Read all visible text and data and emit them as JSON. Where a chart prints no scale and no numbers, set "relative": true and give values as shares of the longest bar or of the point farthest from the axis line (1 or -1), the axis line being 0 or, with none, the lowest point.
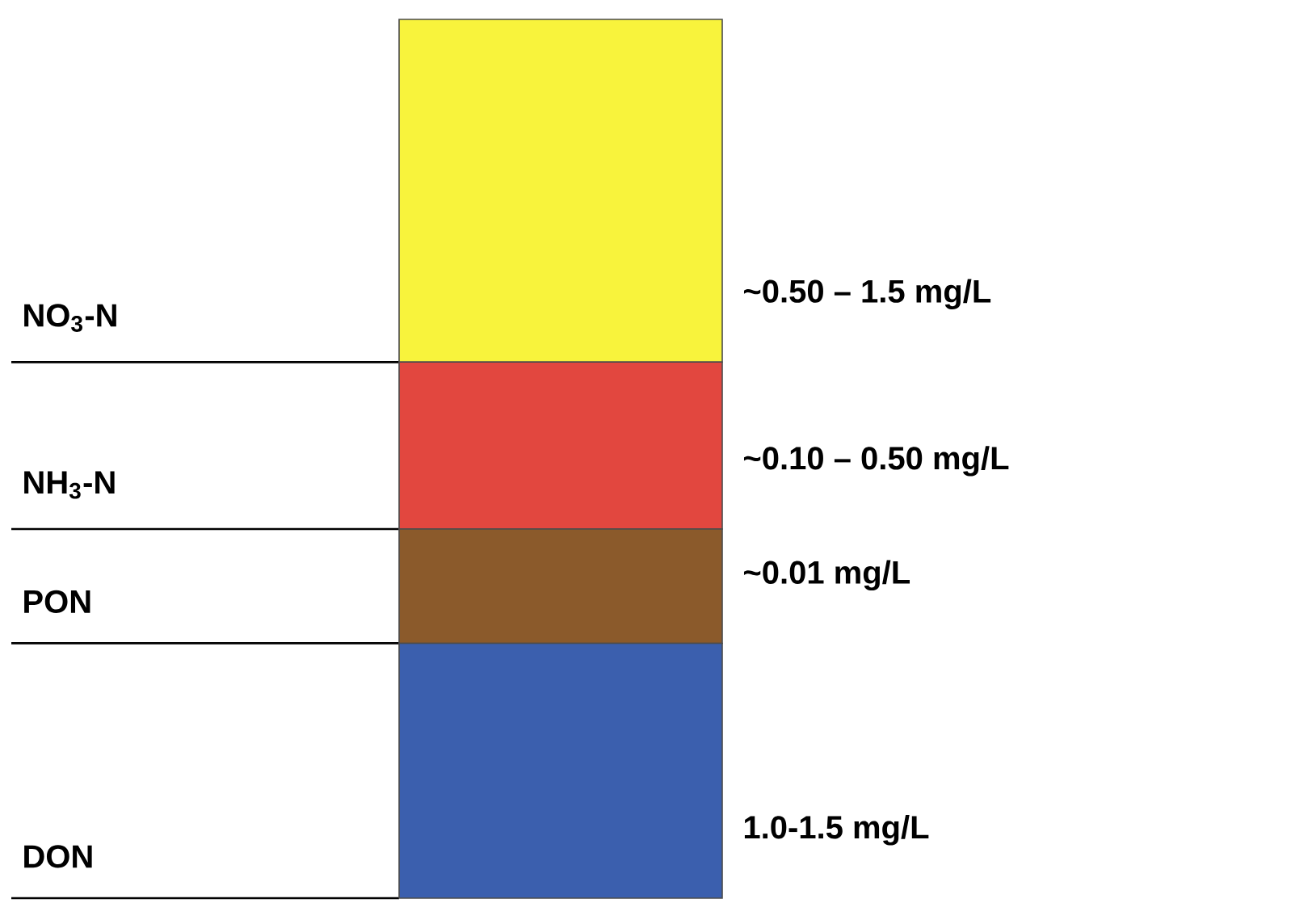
{
  "chart_data": {
    "type": "bar",
    "stacked": true,
    "relative": true,
    "categories": [
      null
    ],
    "series": [
      {
        "name": "DON",
        "color": "#3b5fae",
        "values": [
          0.29
        ]
      },
      {
        "name": "PON",
        "color": "#8b5a2b",
        "values": [
          0.13
        ]
      },
      {
        "name": "NH$_{3}$-N",
        "color": "#e2473f",
        "values": [
          0.19
        ]
      },
      {
        "name": "NO$_{3}$-N",
        "color": "#f8f33c",
        "values": [
          0.39
        ]
      }
    ],
    "annotations": [
      "~0.50 – 1.5 mg/L",
      "~0.10 – 0.50 mg/L",
      "~0.01 mg/L",
      "1.0-1.5 mg/L"
    ]
  }
}
